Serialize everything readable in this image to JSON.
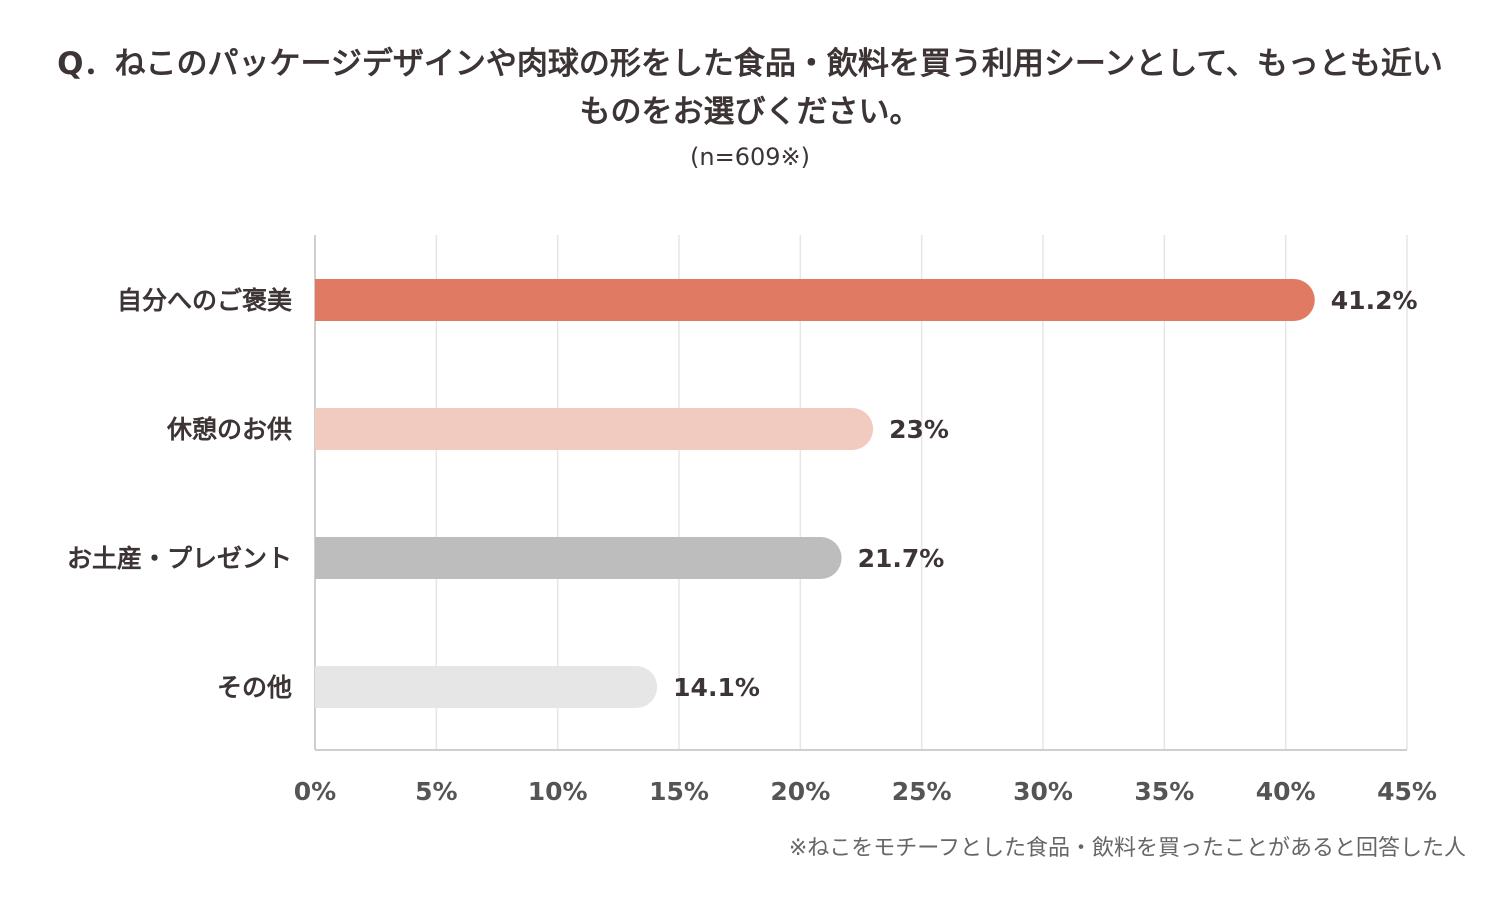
{
  "chart_data": {
    "type": "bar",
    "orientation": "horizontal",
    "title_lines": [
      "Q．ねこのパッケージデザインや肉球の形をした食品・飲料を買う利用シーンとして、もっとも近い",
      "ものをお選びください。"
    ],
    "subtitle": "(n=609※)",
    "categories": [
      "自分へのご褒美",
      "休憩のお供",
      "お土産・プレゼント",
      "その他"
    ],
    "values": [
      41.2,
      23,
      21.7,
      14.1
    ],
    "value_labels": [
      "41.2%",
      "23%",
      "21.7%",
      "14.1%"
    ],
    "bar_colors": [
      "#e07a62",
      "#f2cbc0",
      "#bdbdbd",
      "#e6e6e6"
    ],
    "xlim": [
      0,
      45
    ],
    "xticks": [
      0,
      5,
      10,
      15,
      20,
      25,
      30,
      35,
      40,
      45
    ],
    "xtick_labels": [
      "0%",
      "5%",
      "10%",
      "15%",
      "20%",
      "25%",
      "30%",
      "35%",
      "40%",
      "45%"
    ],
    "grid": true,
    "xlabel": "",
    "ylabel": "",
    "footnote": "※ねこをモチーフとした食品・飲料を買ったことがあると回答した人"
  }
}
